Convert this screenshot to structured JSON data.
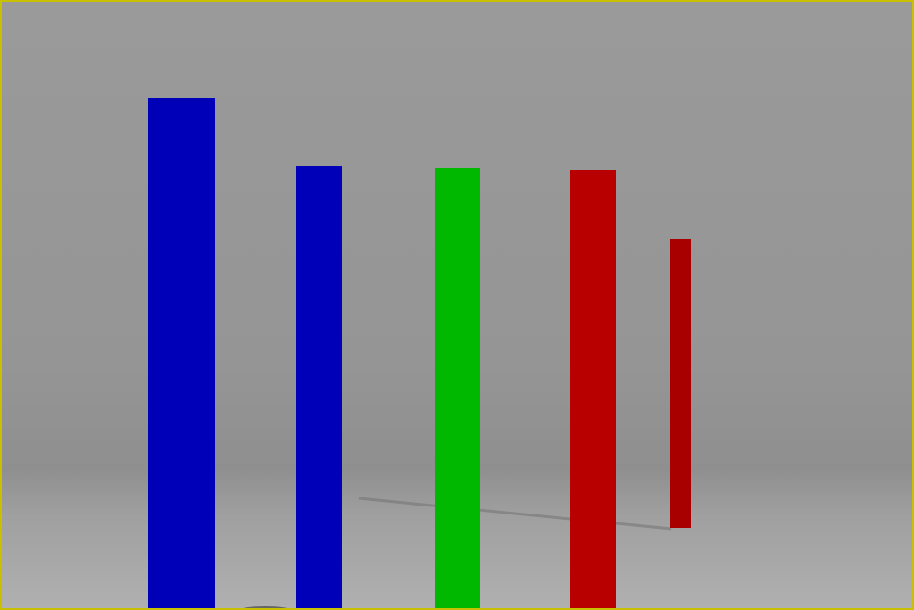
{
  "scene": {
    "border_color": "#c8c000",
    "background_color": "#999999",
    "pillars": [
      {
        "color": "#0000b8"
      },
      {
        "color": "#0000b8"
      },
      {
        "color": "#00b800"
      },
      {
        "color": "#b80000"
      },
      {
        "color": "#a80000"
      }
    ]
  }
}
